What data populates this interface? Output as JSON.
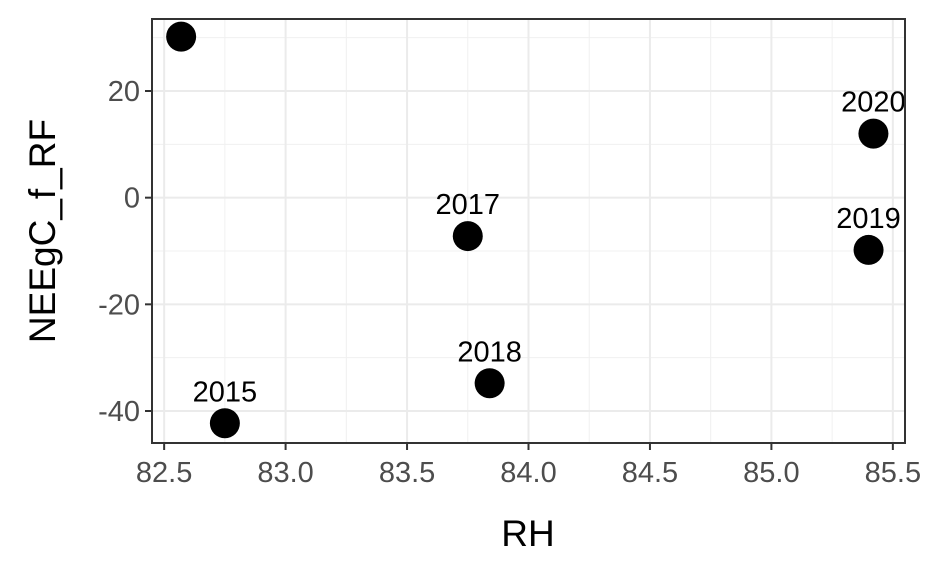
{
  "chart_data": {
    "type": "scatter",
    "xlabel": "RH",
    "ylabel": "NEEgC_f_RF",
    "xlim": [
      82.45,
      85.55
    ],
    "ylim": [
      -46,
      33.5
    ],
    "x_ticks": [
      82.5,
      83.0,
      83.5,
      84.0,
      84.5,
      85.0,
      85.5
    ],
    "x_tick_labels": [
      "82.5",
      "83.0",
      "83.5",
      "84.0",
      "84.5",
      "85.0",
      "85.5"
    ],
    "y_ticks": [
      -40,
      -20,
      0,
      20
    ],
    "y_tick_labels": [
      "-40",
      "-20",
      "0",
      "20"
    ],
    "grid": true,
    "point_color": "#000000",
    "points": [
      {
        "x": 82.57,
        "y": 30.2,
        "label": ""
      },
      {
        "x": 82.75,
        "y": -42.3,
        "label": "2015"
      },
      {
        "x": 83.75,
        "y": -7.2,
        "label": "2017"
      },
      {
        "x": 83.84,
        "y": -34.8,
        "label": "2018"
      },
      {
        "x": 85.4,
        "y": -9.8,
        "label": "2019"
      },
      {
        "x": 85.42,
        "y": 12.0,
        "label": "2020"
      }
    ]
  }
}
